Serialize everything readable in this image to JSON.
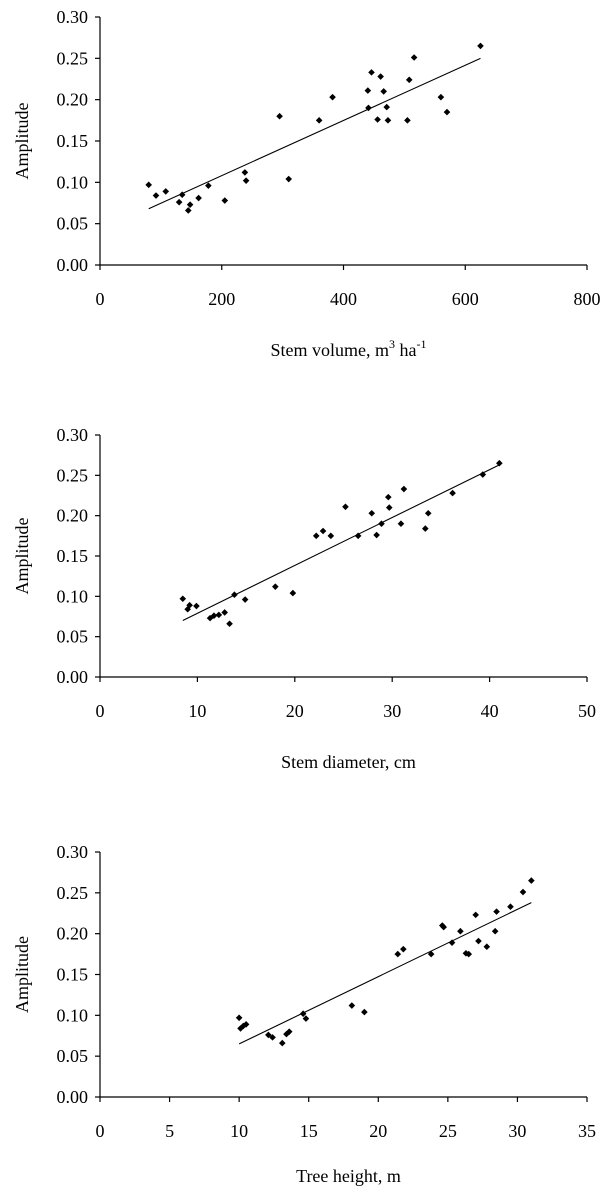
{
  "chart_data": [
    {
      "type": "scatter",
      "xlabel": "Stem volume, m",
      "xlabel_sup1": "3",
      "xlabel_mid": "ha",
      "xlabel_sup2": "-1",
      "ylabel": "Amplitude",
      "xlim": [
        0,
        800
      ],
      "ylim": [
        0,
        0.3
      ],
      "xticks": [
        "0",
        "200",
        "400",
        "600",
        "800"
      ],
      "yticks": [
        "0.00",
        "0.05",
        "0.10",
        "0.15",
        "0.20",
        "0.25",
        "0.30"
      ],
      "grid": false,
      "trendline": {
        "x": [
          80,
          625
        ],
        "y": [
          0.068,
          0.25
        ]
      },
      "points": {
        "x": [
          80,
          92,
          108,
          130,
          135,
          145,
          148,
          162,
          178,
          205,
          238,
          240,
          295,
          310,
          360,
          382,
          440,
          441,
          446,
          456,
          461,
          466,
          471,
          473,
          505,
          508,
          516,
          560,
          570,
          625
        ],
        "y": [
          0.097,
          0.084,
          0.089,
          0.076,
          0.085,
          0.066,
          0.073,
          0.081,
          0.096,
          0.078,
          0.112,
          0.102,
          0.18,
          0.104,
          0.175,
          0.203,
          0.211,
          0.19,
          0.233,
          0.176,
          0.228,
          0.21,
          0.191,
          0.175,
          0.175,
          0.224,
          0.251,
          0.203,
          0.185,
          0.265
        ]
      }
    },
    {
      "type": "scatter",
      "xlabel": "Stem diameter, cm",
      "ylabel": "Amplitude",
      "xlim": [
        0,
        50
      ],
      "ylim": [
        0,
        0.3
      ],
      "xticks": [
        "0",
        "10",
        "20",
        "30",
        "40",
        "50"
      ],
      "yticks": [
        "0.00",
        "0.05",
        "0.10",
        "0.15",
        "0.20",
        "0.25",
        "0.30"
      ],
      "grid": false,
      "trendline": {
        "x": [
          8.5,
          41.0
        ],
        "y": [
          0.07,
          0.263
        ]
      },
      "points": {
        "x": [
          8.5,
          9.0,
          9.2,
          9.9,
          11.3,
          11.7,
          12.2,
          12.8,
          13.3,
          13.8,
          14.9,
          18.0,
          19.8,
          22.2,
          22.9,
          23.7,
          25.2,
          26.5,
          27.9,
          28.4,
          28.9,
          29.6,
          29.7,
          30.9,
          31.2,
          33.4,
          33.7,
          36.2,
          39.3,
          41.0
        ],
        "y": [
          0.097,
          0.084,
          0.089,
          0.088,
          0.073,
          0.076,
          0.077,
          0.08,
          0.066,
          0.102,
          0.096,
          0.112,
          0.104,
          0.175,
          0.181,
          0.175,
          0.211,
          0.175,
          0.203,
          0.176,
          0.19,
          0.223,
          0.21,
          0.19,
          0.233,
          0.184,
          0.203,
          0.228,
          0.251,
          0.265
        ]
      }
    },
    {
      "type": "scatter",
      "xlabel": "Tree height, m",
      "ylabel": "Amplitude",
      "xlim": [
        0,
        35
      ],
      "ylim": [
        0,
        0.3
      ],
      "xticks": [
        "0",
        "5",
        "10",
        "15",
        "20",
        "25",
        "30",
        "35"
      ],
      "yticks": [
        "0.00",
        "0.05",
        "0.10",
        "0.15",
        "0.20",
        "0.25",
        "0.30"
      ],
      "grid": false,
      "trendline": {
        "x": [
          10.0,
          31.0
        ],
        "y": [
          0.065,
          0.238
        ]
      },
      "points": {
        "x": [
          10.0,
          10.1,
          10.3,
          10.5,
          12.1,
          12.4,
          13.1,
          13.4,
          13.6,
          14.6,
          14.8,
          18.1,
          19.0,
          21.4,
          21.8,
          23.8,
          24.6,
          24.7,
          25.3,
          25.9,
          26.3,
          26.5,
          27.0,
          27.2,
          27.8,
          28.4,
          28.5,
          29.5,
          30.4,
          31.0
        ],
        "y": [
          0.097,
          0.084,
          0.087,
          0.089,
          0.076,
          0.073,
          0.066,
          0.077,
          0.08,
          0.102,
          0.096,
          0.112,
          0.104,
          0.175,
          0.181,
          0.175,
          0.21,
          0.208,
          0.189,
          0.203,
          0.176,
          0.175,
          0.223,
          0.191,
          0.184,
          0.203,
          0.227,
          0.233,
          0.251,
          0.265
        ]
      }
    }
  ]
}
